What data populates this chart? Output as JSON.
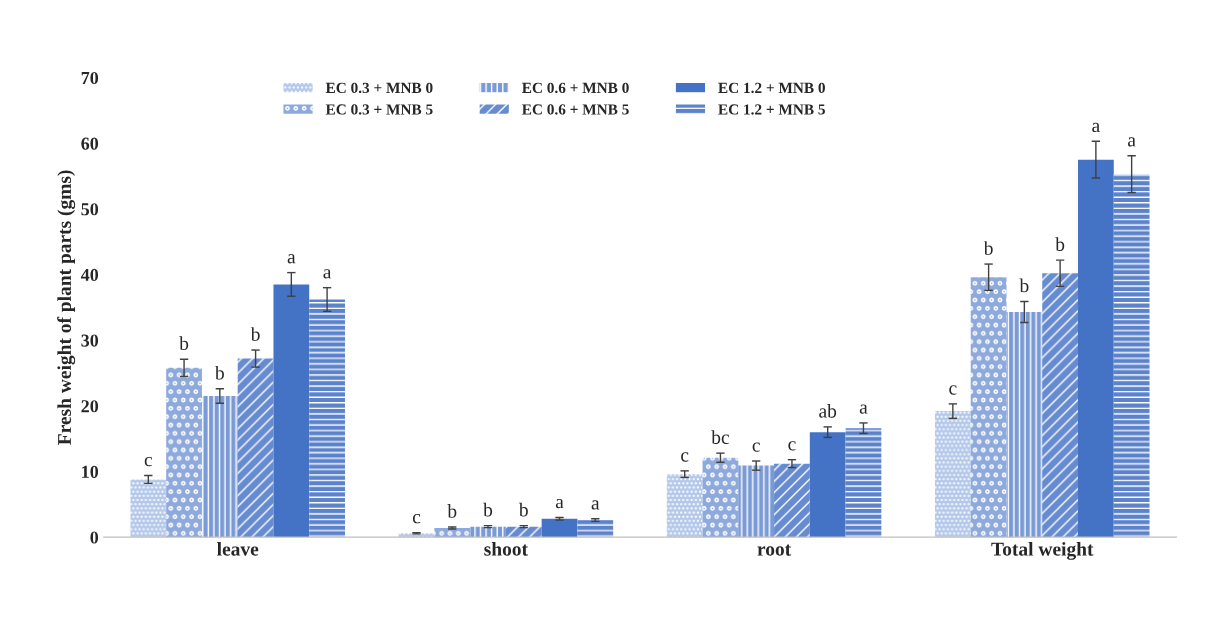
{
  "chart_data": {
    "type": "bar",
    "ylabel": "Fresh weight of plant parts (gms)",
    "categories": [
      "leave",
      "shoot",
      "root",
      "Total weight"
    ],
    "ylim": [
      0,
      70
    ],
    "yticks": [
      0,
      10,
      20,
      30,
      40,
      50,
      60,
      70
    ],
    "grid": false,
    "legend": "top",
    "series": [
      {
        "name": "EC 0.3 + MNB 0",
        "color": "#b4c8ea",
        "values": [
          8.8,
          0.6,
          9.6,
          19.2
        ],
        "errors": [
          0.6,
          0.1,
          0.5,
          1.1
        ],
        "value_labels": [
          "c",
          "c",
          "c",
          "c"
        ]
      },
      {
        "name": "EC 0.3 + MNB 5",
        "color": "#8ea9dc",
        "values": [
          25.8,
          1.4,
          12.1,
          39.6
        ],
        "errors": [
          1.3,
          0.15,
          0.7,
          2.0
        ],
        "value_labels": [
          "b",
          "b",
          "bc",
          "b"
        ]
      },
      {
        "name": "EC 0.6 + MNB 0",
        "color": "#7a9ad6",
        "values": [
          21.5,
          1.6,
          10.9,
          34.3
        ],
        "errors": [
          1.1,
          0.15,
          0.7,
          1.6
        ],
        "value_labels": [
          "b",
          "b",
          "c",
          "b"
        ]
      },
      {
        "name": "EC 0.6 + MNB 5",
        "color": "#668bd0",
        "values": [
          27.2,
          1.6,
          11.2,
          40.2
        ],
        "errors": [
          1.3,
          0.15,
          0.6,
          2.0
        ],
        "value_labels": [
          "b",
          "b",
          "c",
          "b"
        ]
      },
      {
        "name": "EC 1.2 + MNB 0",
        "color": "#4472c4",
        "values": [
          38.5,
          2.8,
          16.0,
          57.5
        ],
        "errors": [
          1.8,
          0.2,
          0.8,
          2.8
        ],
        "value_labels": [
          "a",
          "a",
          "ab",
          "a"
        ]
      },
      {
        "name": "EC 1.2 + MNB 5",
        "color": "#5b82ca",
        "values": [
          36.2,
          2.6,
          16.6,
          55.3
        ],
        "errors": [
          1.8,
          0.2,
          0.8,
          2.8
        ],
        "value_labels": [
          "a",
          "a",
          "a",
          "a"
        ]
      }
    ]
  }
}
